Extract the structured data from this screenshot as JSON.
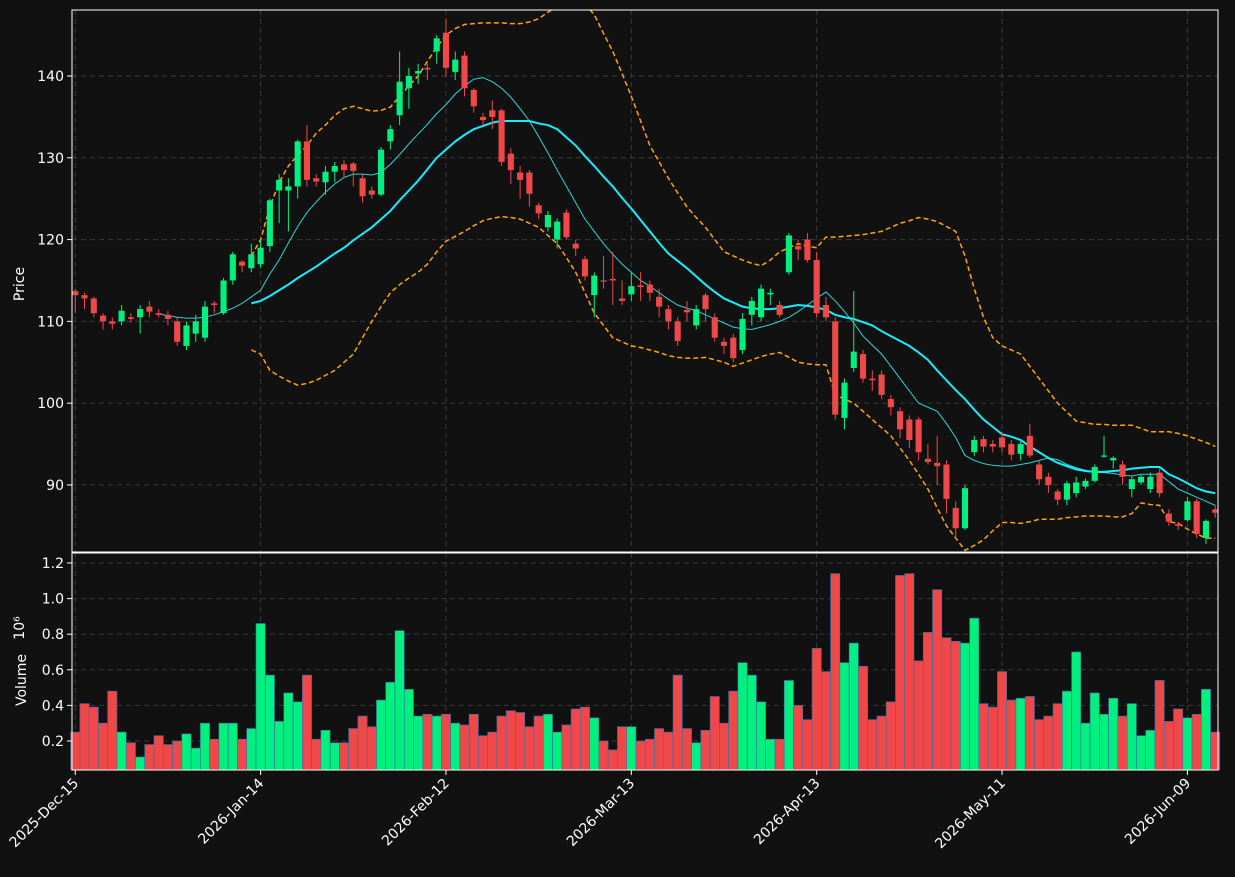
{
  "chart_data": {
    "type": "candlestick",
    "ylabel": "Price",
    "categories": [
      "2025-Dec-15",
      null,
      null,
      null,
      null,
      null,
      null,
      null,
      null,
      null,
      null,
      null,
      null,
      null,
      null,
      null,
      null,
      null,
      null,
      null,
      "2026-Jan-14",
      null,
      null,
      null,
      null,
      null,
      null,
      null,
      null,
      null,
      null,
      null,
      null,
      null,
      null,
      null,
      null,
      null,
      null,
      null,
      "2026-Feb-12",
      null,
      null,
      null,
      null,
      null,
      null,
      null,
      null,
      null,
      null,
      null,
      null,
      null,
      null,
      null,
      null,
      null,
      null,
      null,
      "2026-Mar-13",
      null,
      null,
      null,
      null,
      null,
      null,
      null,
      null,
      null,
      null,
      null,
      null,
      null,
      null,
      null,
      null,
      null,
      null,
      null,
      "2026-Apr-13",
      null,
      null,
      null,
      null,
      null,
      null,
      null,
      null,
      null,
      null,
      null,
      null,
      null,
      null,
      null,
      null,
      null,
      null,
      null,
      "2026-May-11",
      null,
      null,
      null,
      null,
      null,
      null,
      null,
      null,
      null,
      null,
      null,
      null,
      null,
      null,
      null,
      null,
      null,
      null,
      null,
      "2026-Jun-09",
      null,
      null,
      null
    ],
    "xlim": [
      -0.35,
      123.3
    ],
    "ylim": [
      81.8,
      148.07
    ],
    "yticks": [
      90,
      100,
      110,
      120,
      130,
      140
    ],
    "grid": true,
    "up_color": "#00f080",
    "down_color": "#f04848",
    "open": [
      113.7,
      113.2,
      112.8,
      110.7,
      110,
      110,
      110.5,
      110.5,
      111.8,
      111,
      110.8,
      110,
      107,
      108.5,
      108,
      112.2,
      111,
      115,
      117.3,
      116.5,
      117,
      119.2,
      126,
      126,
      126.5,
      132,
      127.5,
      127,
      128.3,
      129.2,
      129.3,
      127.5,
      126,
      125.5,
      132,
      135.2,
      138.5,
      140.3,
      141,
      143,
      145.3,
      140.5,
      142.5,
      138.3,
      135,
      135.8,
      135.8,
      130.5,
      128.2,
      128.2,
      124.2,
      121.5,
      120,
      123.3,
      119.5,
      117.6,
      113.2,
      115,
      115.2,
      112.8,
      113.3,
      114.4,
      114.5,
      113,
      111.5,
      110,
      111.4,
      109.5,
      113.2,
      110.5,
      107.5,
      108,
      106.5,
      110.8,
      110.5,
      113.3,
      112,
      116,
      119.2,
      120,
      117.5,
      112,
      110,
      98.2,
      104.3,
      106,
      103,
      103.5,
      100.5,
      99,
      98,
      98,
      93.2,
      92.7,
      92.5,
      87.2,
      84.7,
      94,
      95.6,
      95,
      95.8,
      95,
      93.8,
      96,
      92.5,
      91,
      89.2,
      88.2,
      89,
      89.8,
      90.5,
      93.5,
      93,
      92.5,
      89.5,
      90.3,
      89.5,
      91.5,
      86.5,
      85.2,
      85.7,
      88,
      83.5,
      87
    ],
    "high": [
      114,
      113.5,
      113,
      111,
      110.5,
      112,
      111,
      112,
      112.5,
      111.5,
      111.3,
      110.5,
      110,
      110.8,
      112.5,
      112.5,
      115.3,
      118.5,
      117.5,
      119.5,
      120,
      125,
      128,
      127.5,
      132.2,
      134,
      128,
      129,
      129.5,
      129.7,
      129.5,
      128,
      126.5,
      131.3,
      134,
      143,
      141,
      141.5,
      141.5,
      145,
      147,
      143,
      143,
      138.5,
      135.5,
      137,
      136,
      131.2,
      129,
      128.5,
      124.5,
      123.5,
      122.6,
      123.7,
      120,
      118,
      116,
      118,
      118.5,
      115,
      116,
      116,
      115,
      114,
      112,
      110.5,
      112.5,
      112,
      113.5,
      111,
      108,
      108.5,
      111,
      113,
      114.5,
      114,
      112.5,
      120.8,
      120,
      120.8,
      118.5,
      113,
      110.5,
      103,
      113.7,
      106.5,
      104,
      104,
      101,
      99.5,
      98.5,
      98.3,
      95,
      96,
      93,
      88,
      90,
      96,
      96,
      95.5,
      96.5,
      95.5,
      95.3,
      97.5,
      93,
      91.5,
      89.5,
      90.5,
      91,
      90.8,
      92.5,
      96,
      93.5,
      93,
      91,
      91.2,
      91.5,
      92,
      87,
      85.5,
      88.5,
      88.3,
      85.8,
      87.5
    ],
    "low": [
      111,
      111.5,
      110.5,
      109,
      109,
      109.5,
      109.8,
      108.5,
      110.5,
      110.5,
      109.5,
      107,
      106.5,
      107.5,
      107.5,
      111,
      110.8,
      114.5,
      116,
      116,
      116.5,
      118.5,
      122,
      121,
      125,
      126.5,
      126.5,
      125.5,
      127,
      127.5,
      126.5,
      124.5,
      125,
      125.3,
      131,
      134,
      136,
      139,
      139.5,
      141.5,
      140,
      139.5,
      137.5,
      135.5,
      134,
      133.5,
      129,
      126.8,
      125,
      124,
      122.5,
      121,
      118.9,
      120,
      118,
      115,
      110.5,
      114,
      112,
      112,
      112.5,
      112.5,
      112.5,
      110.5,
      109,
      107,
      110,
      109,
      110,
      107.5,
      106,
      105,
      106,
      109.5,
      110,
      112,
      110.5,
      115.7,
      117.5,
      117.2,
      110.5,
      110,
      98,
      96.8,
      103.8,
      102.5,
      101.5,
      100.5,
      98.5,
      95.7,
      94.5,
      93,
      92.5,
      90,
      86.5,
      83.5,
      84.5,
      93.5,
      94,
      94,
      94,
      93,
      93,
      93.3,
      90,
      89,
      87.5,
      87.5,
      88.5,
      89.5,
      90.3,
      93.3,
      92,
      90,
      88.5,
      90,
      89,
      88.5,
      85,
      84.5,
      85.5,
      83.5,
      82.8,
      86
    ],
    "close": [
      113.2,
      112.8,
      111,
      110,
      109.7,
      111.3,
      110.3,
      111.5,
      111.2,
      110.8,
      110.3,
      107.5,
      109.5,
      110,
      111.8,
      112,
      115,
      118.2,
      116.8,
      118.2,
      119,
      124.8,
      127.3,
      126.5,
      132,
      127.3,
      127.1,
      128.3,
      129,
      128.5,
      128.4,
      125.3,
      125.5,
      131,
      133.5,
      139.3,
      140,
      140.6,
      140.8,
      144.6,
      141,
      142,
      138.5,
      136.3,
      134.6,
      135,
      129.5,
      128.5,
      127.3,
      125.6,
      123.2,
      123,
      122.2,
      120.3,
      118.9,
      115.5,
      115.6,
      114.9,
      115,
      112.5,
      114.3,
      114.2,
      113.5,
      111.8,
      110,
      107.6,
      111.1,
      111.5,
      111.5,
      108,
      107,
      105.5,
      110.3,
      112.5,
      114,
      113.5,
      110.8,
      120.5,
      118.8,
      117.5,
      111,
      110.5,
      98.6,
      102.5,
      106.3,
      103,
      102.8,
      101,
      99.5,
      96.8,
      95.5,
      94,
      92.8,
      92.3,
      88.3,
      84.7,
      89.6,
      95.5,
      94.7,
      94.7,
      94.6,
      93.7,
      95,
      93.6,
      90.7,
      90,
      88.2,
      90.2,
      90.3,
      90.5,
      92.2,
      93.6,
      93.3,
      91,
      90.7,
      91,
      91,
      89,
      85.5,
      85,
      88,
      84,
      85.6,
      86.6
    ],
    "overlays": [
      {
        "color": "#2ad4d4",
        "width": 1,
        "dash": false,
        "values": [
          null,
          null,
          null,
          null,
          null,
          null,
          null,
          null,
          null,
          110.9,
          110.7,
          110.5,
          110.4,
          110.4,
          110.5,
          110.8,
          111.2,
          111.6,
          112.2,
          113,
          113.8,
          115.8,
          117.5,
          119.6,
          121.6,
          123.3,
          124.6,
          125.8,
          126.8,
          127.6,
          128,
          128,
          127.9,
          128.2,
          129.2,
          130.4,
          131.7,
          132.9,
          134.1,
          135.4,
          136.5,
          137.8,
          138.8,
          139.6,
          139.8,
          139.3,
          138.5,
          137.4,
          136,
          134.5,
          132.6,
          130.6,
          128.5,
          126.5,
          124.5,
          122.5,
          121,
          119.5,
          118.2,
          117,
          116,
          115,
          114.3,
          113.5,
          112.7,
          112,
          111.6,
          111.3,
          110.8,
          110.3,
          109.8,
          109.3,
          109.1,
          109,
          109.3,
          109.6,
          110,
          110.5,
          111.2,
          112,
          112.8,
          113.6,
          112.5,
          111.2,
          109.8,
          108.2,
          107.1,
          106,
          104.5,
          103,
          101.5,
          100,
          99.5,
          99,
          97.5,
          95.8,
          93.6,
          93,
          92.6,
          92.4,
          92.3,
          92.3,
          92.5,
          92.7,
          93,
          93.3,
          93.1,
          92.5,
          92.1,
          91.8,
          91.6,
          91.5,
          91.4,
          91.2,
          91.1,
          91.3,
          91.3,
          91.3,
          90.4,
          89.5,
          89,
          88.5,
          88,
          87.5
        ]
      },
      {
        "color": "#18eeff",
        "width": 2,
        "dash": false,
        "values": [
          null,
          null,
          null,
          null,
          null,
          null,
          null,
          null,
          null,
          null,
          null,
          null,
          null,
          null,
          null,
          null,
          null,
          null,
          null,
          112.2,
          112.5,
          113.1,
          113.8,
          114.5,
          115.3,
          116,
          116.7,
          117.5,
          118.3,
          119,
          119.9,
          120.7,
          121.5,
          122.5,
          123.5,
          124.8,
          126,
          127.2,
          128.6,
          130,
          131,
          132,
          132.8,
          133.5,
          133.9,
          134.3,
          134.5,
          134.5,
          134.5,
          134.5,
          134.2,
          134,
          133.5,
          132.5,
          131.5,
          130.2,
          129,
          127.7,
          126.5,
          125.1,
          123.8,
          122.4,
          121,
          119.6,
          118.3,
          117.4,
          116.5,
          115.5,
          114.5,
          113.6,
          112.8,
          112.3,
          111.8,
          111.6,
          111.5,
          111.5,
          111.6,
          111.8,
          112,
          111.9,
          111.7,
          111.4,
          110.8,
          110.5,
          110.3,
          109.9,
          109.5,
          108.8,
          108.2,
          107.6,
          107,
          106.2,
          105.3,
          104,
          102.8,
          101.6,
          100.5,
          99.2,
          98,
          97.1,
          96.2,
          95.9,
          95.5,
          94.7,
          94,
          93.3,
          92.7,
          92.3,
          91.9,
          91.7,
          91.6,
          91.6,
          91.7,
          91.8,
          92,
          92.1,
          92.2,
          92.2,
          91.3,
          90.8,
          90.2,
          89.6,
          89.2,
          89
        ]
      },
      {
        "color": "#ffa500",
        "width": 1.5,
        "dash": true,
        "values": [
          null,
          null,
          null,
          null,
          null,
          null,
          null,
          null,
          null,
          null,
          null,
          null,
          null,
          null,
          null,
          null,
          null,
          null,
          null,
          118,
          120,
          124,
          127,
          129,
          130.3,
          131.5,
          133,
          134,
          135.2,
          136,
          136.3,
          136,
          135.7,
          135.8,
          136.2,
          137.5,
          138.8,
          140,
          141.8,
          143.5,
          145,
          145.8,
          146.3,
          146.4,
          146.5,
          146.5,
          146.5,
          146.4,
          146.4,
          146.6,
          147,
          147.8,
          148.5,
          149,
          149,
          148.8,
          147.5,
          145.2,
          143,
          140.3,
          137.5,
          134.5,
          131.5,
          129.5,
          127.5,
          125.7,
          124,
          122.7,
          121.5,
          120,
          118.5,
          118,
          117.5,
          117.1,
          116.8,
          117.5,
          118.5,
          119,
          119.5,
          119.2,
          119,
          120.3,
          120.3,
          120.4,
          120.5,
          120.6,
          120.8,
          121,
          121.5,
          122,
          122.3,
          122.7,
          122.5,
          122.2,
          121.6,
          121,
          118,
          114,
          110.5,
          108,
          107,
          106.5,
          106,
          104.5,
          103,
          101.5,
          100,
          98.9,
          97.8,
          97.6,
          97.4,
          97.4,
          97.3,
          97.3,
          97.3,
          96.9,
          96.5,
          96.5,
          96.5,
          96.3,
          96,
          95.6,
          95.2,
          94.7
        ]
      },
      {
        "color": "#ffa500",
        "width": 1.5,
        "dash": true,
        "values": [
          null,
          null,
          null,
          null,
          null,
          null,
          null,
          null,
          null,
          null,
          null,
          null,
          null,
          null,
          null,
          null,
          null,
          null,
          null,
          106.5,
          106,
          104,
          103.3,
          102.7,
          102.2,
          102.4,
          102.8,
          103.4,
          104,
          105,
          106,
          108,
          110,
          111.8,
          113.5,
          114.5,
          115.3,
          116,
          117,
          118.5,
          119.8,
          120.4,
          121,
          121.7,
          122.3,
          122.6,
          122.8,
          122.7,
          122.5,
          122,
          121.5,
          120.5,
          119.5,
          117.8,
          116,
          113.5,
          111,
          109.5,
          108,
          107.5,
          107,
          106.8,
          106.5,
          106.2,
          105.8,
          105.6,
          105.5,
          105.5,
          105.6,
          105.3,
          105,
          104.5,
          104.9,
          105.3,
          105.7,
          106,
          106.2,
          105.6,
          105,
          104.8,
          104.7,
          104.7,
          101,
          100.5,
          100,
          99,
          98,
          97,
          96,
          94.5,
          93,
          91.3,
          89.5,
          87.2,
          85,
          83.5,
          82,
          82.6,
          83.3,
          84.4,
          85.4,
          85.4,
          85.3,
          85.5,
          85.8,
          85.8,
          85.8,
          86,
          86.1,
          86.2,
          86.2,
          86.2,
          86.1,
          86.1,
          86.5,
          87.8,
          87.6,
          87.5,
          85.5,
          85.3,
          84.6,
          84,
          83.5,
          83.5
        ]
      }
    ],
    "volume": {
      "ylabel": "Volume",
      "exponent_label": "10⁶",
      "ylim": [
        0.037,
        1.256
      ],
      "yticks": [
        0.2,
        0.4,
        0.6,
        0.8,
        {
          "value": 1,
          "label": "1.0"
        },
        1.2
      ],
      "values": [
        0.25,
        0.41,
        0.39,
        0.3,
        0.48,
        0.25,
        0.19,
        0.11,
        0.18,
        0.23,
        0.18,
        0.2,
        0.24,
        0.16,
        0.3,
        0.21,
        0.3,
        0.3,
        0.21,
        0.27,
        0.86,
        0.57,
        0.31,
        0.47,
        0.42,
        0.57,
        0.21,
        0.26,
        0.19,
        0.19,
        0.27,
        0.34,
        0.28,
        0.43,
        0.53,
        0.82,
        0.49,
        0.34,
        0.35,
        0.34,
        0.35,
        0.3,
        0.29,
        0.35,
        0.23,
        0.25,
        0.34,
        0.37,
        0.36,
        0.28,
        0.34,
        0.35,
        0.25,
        0.29,
        0.38,
        0.39,
        0.33,
        0.2,
        0.15,
        0.28,
        0.28,
        0.2,
        0.21,
        0.27,
        0.25,
        0.57,
        0.27,
        0.19,
        0.26,
        0.45,
        0.3,
        0.48,
        0.64,
        0.57,
        0.42,
        0.21,
        0.21,
        0.54,
        0.4,
        0.32,
        0.72,
        0.59,
        1.14,
        0.64,
        0.75,
        0.62,
        0.32,
        0.34,
        0.42,
        1.13,
        1.14,
        0.65,
        0.81,
        1.05,
        0.78,
        0.76,
        0.75,
        0.89,
        0.41,
        0.39,
        0.59,
        0.43,
        0.44,
        0.45,
        0.32,
        0.34,
        0.41,
        0.48,
        0.7,
        0.3,
        0.47,
        0.35,
        0.44,
        0.34,
        0.41,
        0.23,
        0.26,
        0.54,
        0.31,
        0.38,
        0.33,
        0.35,
        0.49,
        0.25
      ]
    }
  }
}
